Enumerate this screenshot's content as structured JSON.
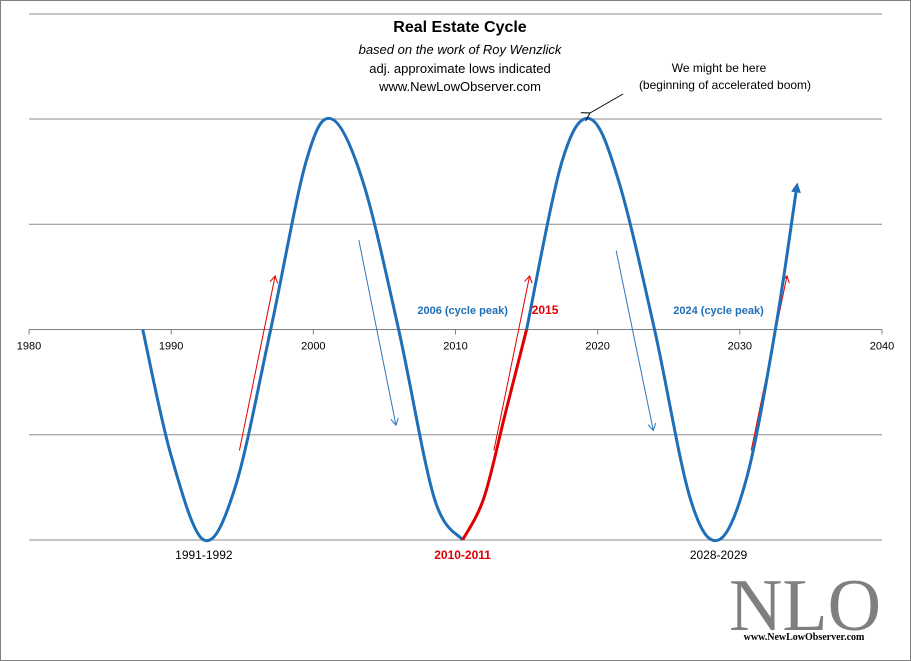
{
  "chart_data": {
    "type": "line",
    "title": "Real Estate  Cycle",
    "subtitle": "based on the work of Roy Wenzlick",
    "subtitle2": "adj. approximate lows indicated",
    "subtitle3": "www.NewLowObserver.com",
    "xlabel": "",
    "ylabel": "",
    "xlim": [
      1980,
      2040
    ],
    "ylim": [
      -2,
      2
    ],
    "x_ticks": [
      "1980",
      "1990",
      "2000",
      "2010",
      "2020",
      "2030",
      "2040"
    ],
    "grid": "horizontal",
    "series": [
      {
        "color": "#1f6fb8",
        "x": [
          1988,
          1990,
          1992.3,
          1994.5,
          1997,
          1999.5,
          2001.3,
          2003.5,
          2006,
          2008.5,
          2010.5
        ],
        "y": [
          0,
          -1.2,
          -2,
          -1.5,
          0,
          1.6,
          2,
          1.4,
          0,
          -1.6,
          -2
        ]
      },
      {
        "color": "#e00000",
        "x": [
          2010.5,
          2012,
          2013.5,
          2015
        ],
        "y": [
          -2,
          -1.6,
          -0.8,
          0
        ]
      },
      {
        "color": "#1f6fb8",
        "x": [
          2015,
          2017.5,
          2019.5,
          2021.5,
          2024,
          2026.5,
          2028.5,
          2030.5,
          2032.5,
          2034
        ],
        "y": [
          0,
          1.6,
          2,
          1.4,
          0,
          -1.6,
          -2,
          -1.4,
          0,
          1.35
        ]
      }
    ],
    "low_labels": [
      {
        "text": "1991-1992",
        "x": 1992.3,
        "color": "#000000"
      },
      {
        "text": "2010-2011",
        "x": 2010.5,
        "color": "#e00000"
      },
      {
        "text": "2028-2029",
        "x": 2028.5,
        "color": "#000000"
      }
    ],
    "peak_labels": [
      {
        "text": "2006 (cycle  peak)",
        "x": 2010.5,
        "y": 0.1
      },
      {
        "text": "2024 (cycle  peak)",
        "x": 2028.5,
        "y": 0.1
      }
    ],
    "point_label": {
      "text": "2015",
      "x": 2016.3,
      "y": 0.1
    },
    "callout": {
      "line1": "We might be here",
      "line2": "(beginning of accelerated boom)",
      "x": 2019.5,
      "y": 2
    },
    "trend_arrows_up": [
      {
        "from": [
          1994.8,
          -1.15
        ],
        "to": [
          1997.3,
          0.5
        ]
      },
      {
        "from": [
          2012.7,
          -1.15
        ],
        "to": [
          2015.2,
          0.5
        ]
      },
      {
        "from": [
          2030.8,
          -1.15
        ],
        "to": [
          2033.3,
          0.5
        ]
      }
    ],
    "trend_arrows_down": [
      {
        "from": [
          2003.2,
          0.85
        ],
        "to": [
          2005.8,
          -0.9
        ]
      },
      {
        "from": [
          2021.3,
          0.75
        ],
        "to": [
          2023.9,
          -0.95
        ]
      }
    ]
  },
  "logo": {
    "text": "NLO",
    "url": "www.NewLowObserver.com"
  },
  "colors": {
    "blue": "#1f6fb8",
    "red": "#e00000",
    "grid": "#8c8c8c",
    "logo": "#7f7f7f"
  }
}
